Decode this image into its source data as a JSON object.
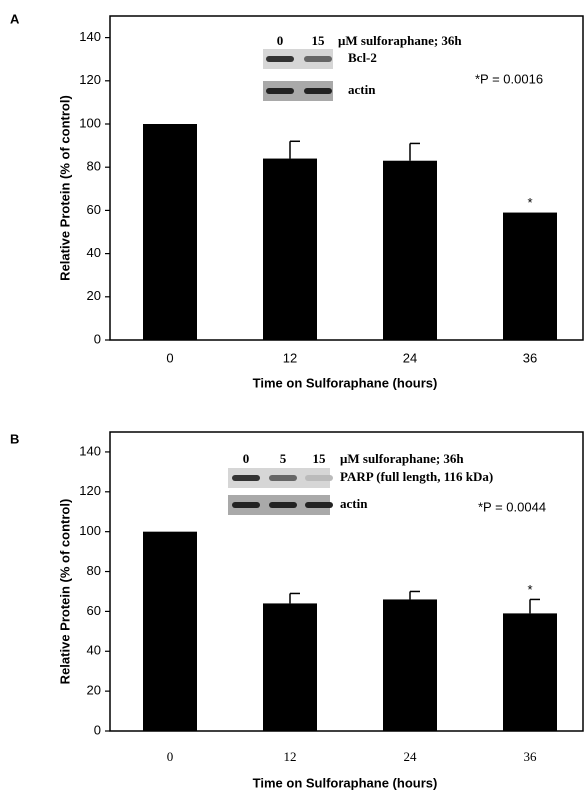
{
  "chart_data": [
    {
      "type": "bar",
      "panel_label": "A",
      "categories": [
        "0",
        "12",
        "24",
        "36"
      ],
      "values": [
        100,
        84,
        83,
        59
      ],
      "errors": [
        null,
        8,
        8,
        null
      ],
      "color": "#000000",
      "ylim": [
        0,
        150
      ],
      "yticks": [
        0,
        20,
        40,
        60,
        80,
        100,
        120,
        140
      ],
      "xlabel": "Time on Sulforaphane (hours)",
      "ylabel": "Relative Protein (% of control)",
      "significance": [
        null,
        null,
        null,
        "*"
      ],
      "annotation": "*P = 0.0016",
      "inset": {
        "lanes": [
          "0",
          "15"
        ],
        "treatment": "μM sulforaphane; 36h",
        "rows": [
          "Bcl-2",
          "actin"
        ]
      }
    },
    {
      "type": "bar",
      "panel_label": "B",
      "categories": [
        "0",
        "12",
        "24",
        "36"
      ],
      "values": [
        100,
        64,
        66,
        59
      ],
      "errors": [
        null,
        5,
        4,
        7
      ],
      "color": "#000000",
      "ylim": [
        0,
        150
      ],
      "yticks": [
        0,
        20,
        40,
        60,
        80,
        100,
        120,
        140
      ],
      "xlabel": "Time on Sulforaphane (hours)",
      "ylabel": "Relative Protein (% of control)",
      "significance": [
        null,
        null,
        null,
        "*"
      ],
      "annotation": "*P = 0.0044",
      "inset": {
        "lanes": [
          "0",
          "5",
          "15"
        ],
        "treatment": "μM sulforaphane; 36h",
        "rows": [
          "PARP (full length, 116 kDa)",
          "actin"
        ]
      }
    }
  ]
}
